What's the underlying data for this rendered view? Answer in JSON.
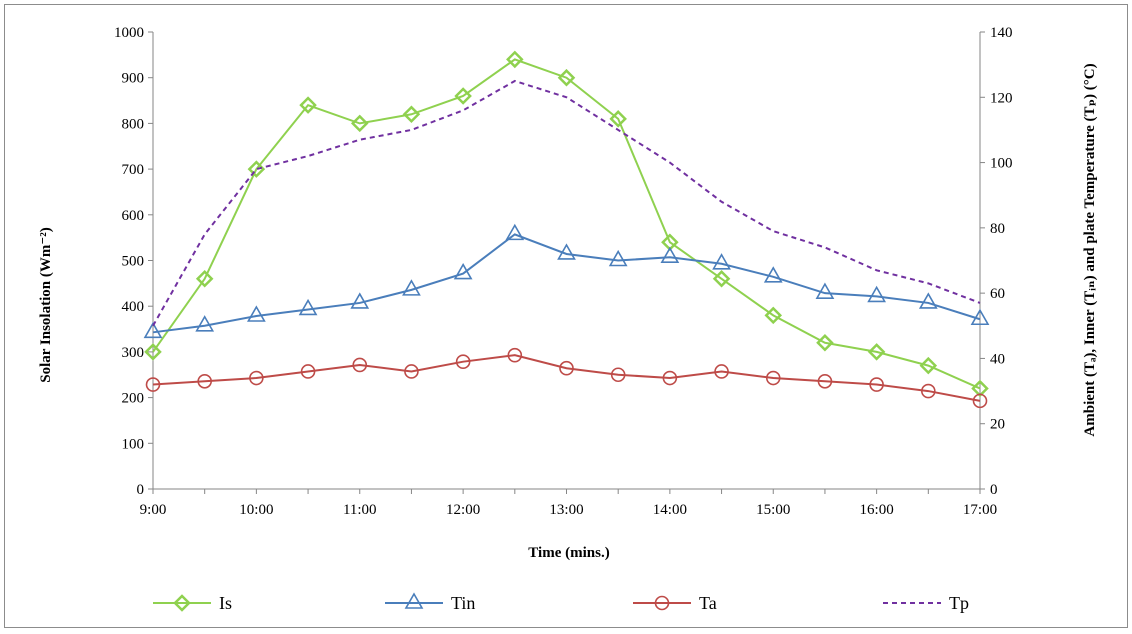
{
  "chart_data": {
    "type": "line",
    "x": [
      "9:00",
      "9:30",
      "10:00",
      "10:30",
      "11:00",
      "11:30",
      "12:00",
      "12:30",
      "13:00",
      "13:30",
      "14:00",
      "14:30",
      "15:00",
      "15:30",
      "16:00",
      "16:30",
      "17:00"
    ],
    "x_tick_labels": [
      "9:00",
      "10:00",
      "11:00",
      "12:00",
      "13:00",
      "14:00",
      "15:00",
      "16:00",
      "17:00"
    ],
    "xlabel": "Time (mins.)",
    "ylabel_left": "Solar Insolation (Wm⁻²)",
    "ylabel_right": "Ambient (Tₐ), Inner (Tᵢₙ) and plate Temperature (Tₚ) (°C)",
    "ylim_left": [
      0,
      1000
    ],
    "yticks_left": [
      0,
      100,
      200,
      300,
      400,
      500,
      600,
      700,
      800,
      900,
      1000
    ],
    "ylim_right": [
      0,
      140
    ],
    "yticks_right": [
      0,
      20,
      40,
      60,
      80,
      100,
      120,
      140
    ],
    "grid": false,
    "legend_position": "bottom",
    "series": [
      {
        "name": "Is",
        "axis": "left",
        "color": "#8fd14f",
        "marker": "diamond",
        "dash": false,
        "values": [
          300,
          460,
          700,
          840,
          800,
          820,
          860,
          940,
          900,
          810,
          540,
          460,
          380,
          320,
          300,
          270,
          220
        ]
      },
      {
        "name": "Tin",
        "axis": "right",
        "color": "#4a7ebb",
        "marker": "triangle",
        "dash": false,
        "values": [
          48,
          50,
          53,
          55,
          57,
          61,
          66,
          78,
          72,
          70,
          71,
          69,
          65,
          60,
          59,
          57,
          52
        ]
      },
      {
        "name": "Ta",
        "axis": "right",
        "color": "#be4b48",
        "marker": "circle",
        "dash": false,
        "values": [
          32,
          33,
          34,
          36,
          38,
          36,
          39,
          41,
          37,
          35,
          34,
          36,
          34,
          33,
          32,
          30,
          27
        ]
      },
      {
        "name": "Tp",
        "axis": "right",
        "color": "#7030a0",
        "marker": "none",
        "dash": true,
        "values": [
          50,
          78,
          98,
          102,
          107,
          110,
          116,
          125,
          120,
          110,
          100,
          88,
          79,
          74,
          67,
          63,
          57
        ]
      }
    ]
  }
}
